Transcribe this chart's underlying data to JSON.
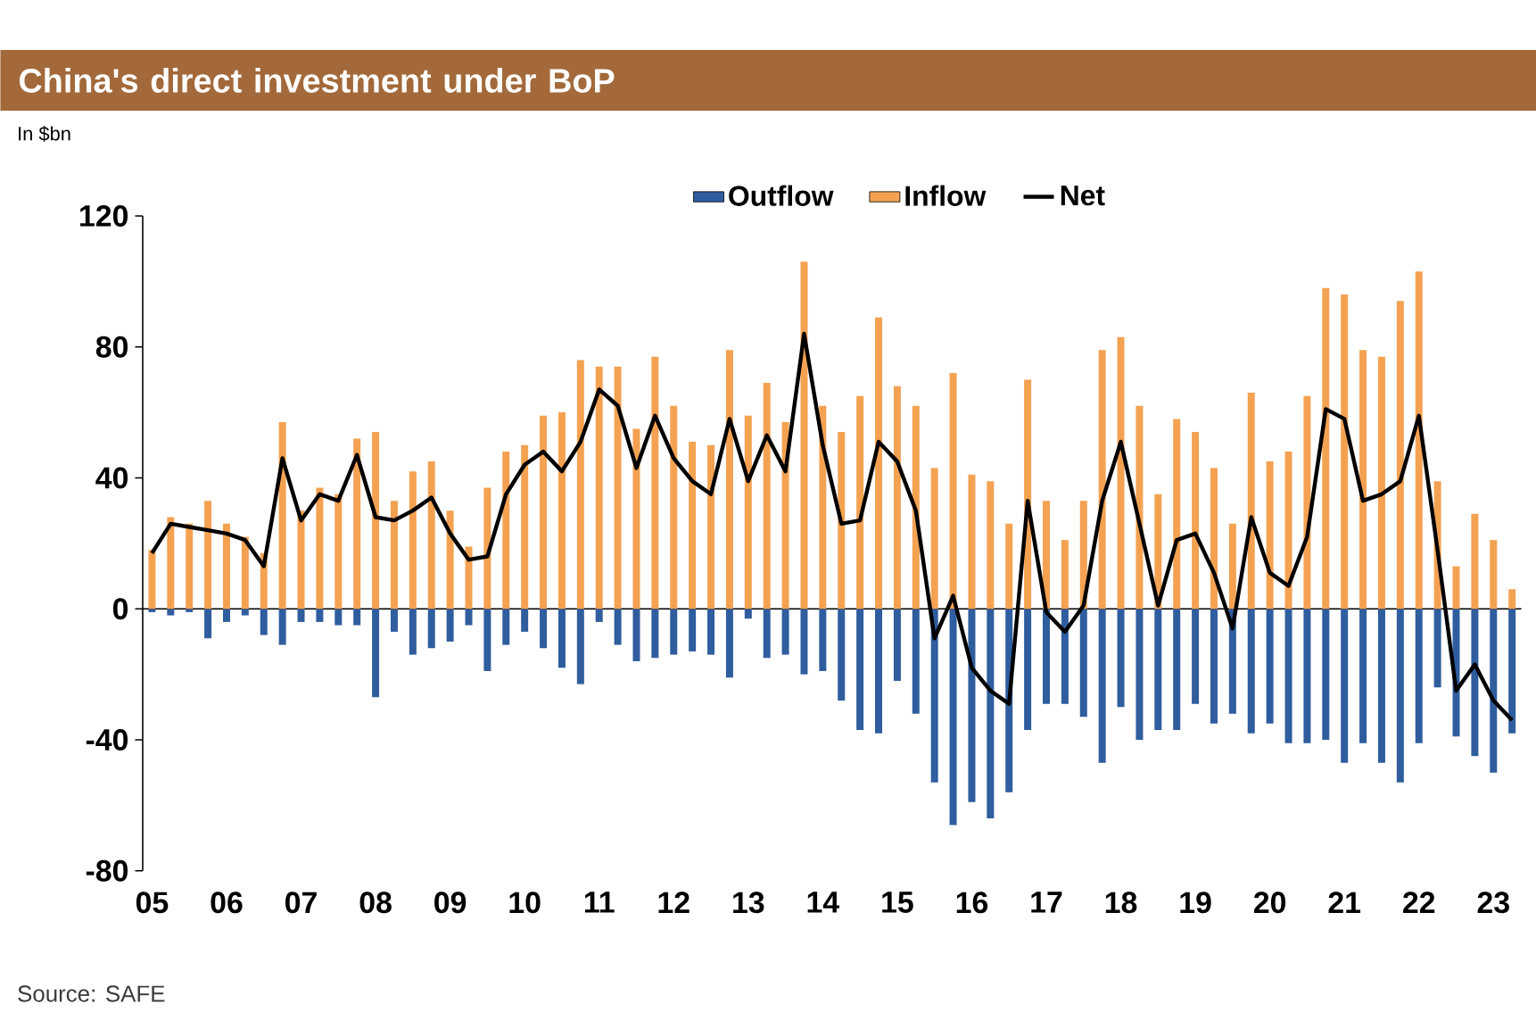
{
  "chart_data": {
    "type": "bar",
    "title": "China's direct investment under BoP",
    "ylabel": "In $bn",
    "categories": [
      "05",
      null,
      null,
      null,
      "06",
      null,
      null,
      null,
      "07",
      null,
      null,
      null,
      "08",
      null,
      null,
      null,
      "09",
      null,
      null,
      null,
      "10",
      null,
      null,
      null,
      "11",
      null,
      null,
      null,
      "12",
      null,
      null,
      null,
      "13",
      null,
      null,
      null,
      "14",
      null,
      null,
      null,
      "15",
      null,
      null,
      null,
      "16",
      null,
      null,
      null,
      "17",
      null,
      null,
      null,
      "18",
      null,
      null,
      null,
      "19",
      null,
      null,
      null,
      "20",
      null,
      null,
      null,
      "21",
      null,
      null,
      null,
      "22",
      null,
      null,
      null,
      "23",
      null
    ],
    "series": [
      {
        "name": "Outflow",
        "type": "bar",
        "color": "#2f5d9e",
        "values": [
          -1,
          -2,
          -1,
          -9,
          -4,
          -2,
          -8,
          -11,
          -4,
          -4,
          -5,
          -5,
          -27,
          -7,
          -14,
          -12,
          -10,
          -5,
          -19,
          -11,
          -7,
          -12,
          -18,
          -23,
          -4,
          -11,
          -16,
          -15,
          -14,
          -13,
          -14,
          -21,
          -3,
          -15,
          -14,
          -20,
          -19,
          -28,
          -37,
          -38,
          -22,
          -32,
          -53,
          -66,
          -59,
          -64,
          -56,
          -37,
          -29,
          -29,
          -33,
          -47,
          -30,
          -40,
          -37,
          -37,
          -29,
          -35,
          -32,
          -38,
          -35,
          -41,
          -41,
          -40,
          -47,
          -41,
          -47,
          -53,
          -41,
          -24,
          -39,
          -45,
          -50,
          -38
        ]
      },
      {
        "name": "Inflow",
        "type": "bar",
        "color": "#f4a252",
        "values": [
          18,
          28,
          26,
          33,
          26,
          22,
          17,
          57,
          30,
          37,
          35,
          52,
          54,
          33,
          42,
          45,
          30,
          19,
          37,
          48,
          50,
          59,
          60,
          76,
          74,
          74,
          55,
          77,
          62,
          51,
          50,
          79,
          59,
          69,
          57,
          106,
          62,
          54,
          65,
          89,
          68,
          62,
          43,
          72,
          41,
          39,
          26,
          70,
          33,
          21,
          33,
          79,
          83,
          62,
          35,
          58,
          54,
          43,
          26,
          66,
          45,
          48,
          65,
          98,
          96,
          79,
          77,
          94,
          103,
          39,
          13,
          29,
          21,
          6
        ]
      },
      {
        "name": "Net",
        "type": "line",
        "color": "#000000",
        "values": [
          17,
          26,
          25,
          24,
          23,
          21,
          13,
          46,
          27,
          35,
          33,
          47,
          28,
          27,
          30,
          34,
          23,
          15,
          16,
          35,
          44,
          48,
          42,
          51,
          67,
          62,
          43,
          59,
          46,
          39,
          35,
          58,
          39,
          53,
          42,
          84,
          50,
          26,
          27,
          51,
          45,
          30,
          -9,
          4,
          -18,
          -25,
          -29,
          33,
          -1,
          -7,
          1,
          33,
          51,
          26,
          1,
          21,
          23,
          11,
          -6,
          28,
          11,
          7,
          22,
          61,
          58,
          33,
          35,
          39,
          59,
          18,
          -25,
          -17,
          -28,
          -34
        ]
      }
    ],
    "ylim": [
      -80,
      120
    ],
    "yticks": [
      -80,
      -40,
      0,
      40,
      80,
      120
    ],
    "stacked": true,
    "grid": false,
    "ref_lines": [
      {
        "axis": "y",
        "value": 0
      }
    ],
    "legend": "top",
    "annotations": [
      "Source: SAFE"
    ]
  }
}
